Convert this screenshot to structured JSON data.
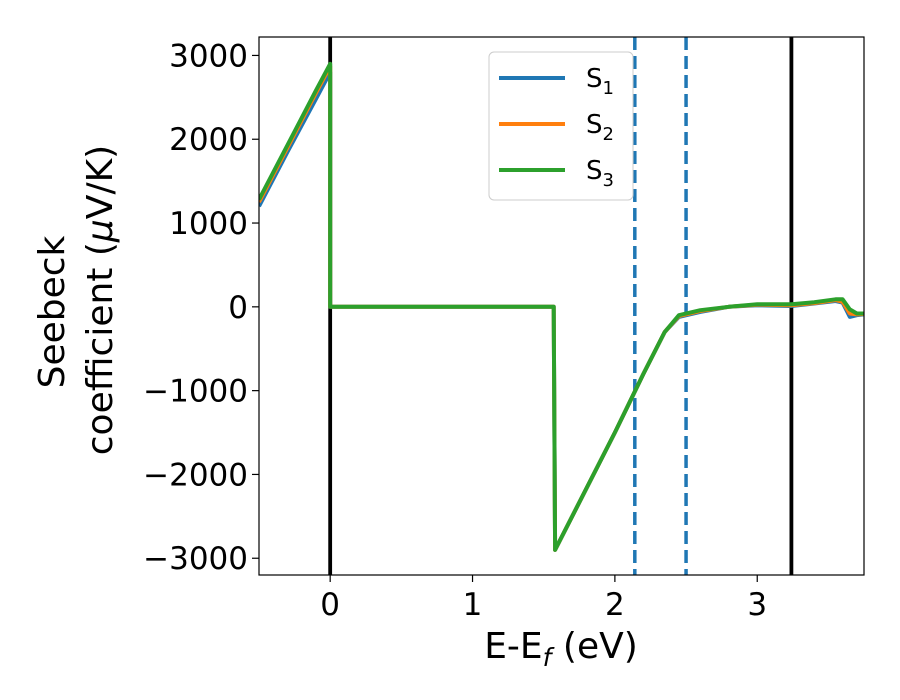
{
  "chart_data": {
    "type": "line",
    "xlabel": "E-E",
    "xlabel_sub": "f",
    "xlabel_unit": " (eV)",
    "ylabel_line1": "Seebeck",
    "ylabel_line2_pre": "coefficient  (",
    "ylabel_mu": "μ",
    "ylabel_line2_post": "V/K)",
    "xlim": [
      -0.5,
      3.75
    ],
    "ylim": [
      -3200,
      3220
    ],
    "xticks": [
      0,
      1,
      2,
      3
    ],
    "xtick_labels": [
      "0",
      "1",
      "2",
      "3"
    ],
    "yticks": [
      -3000,
      -2000,
      -1000,
      0,
      1000,
      2000,
      3000
    ],
    "ytick_labels": [
      "−3000",
      "−2000",
      "−1000",
      "0",
      "1000",
      "2000",
      "3000"
    ],
    "legend_position": "top-center",
    "vlines": [
      {
        "x": 0.0,
        "style": "solid",
        "color": "#000000"
      },
      {
        "x": 3.24,
        "style": "solid",
        "color": "#000000"
      },
      {
        "x": 2.14,
        "style": "dashed",
        "color": "#1f77b4"
      },
      {
        "x": 2.5,
        "style": "dashed",
        "color": "#1f77b4"
      }
    ],
    "series": [
      {
        "name": "S",
        "name_sub": "1",
        "color": "#1f77b4",
        "x": [
          -0.5,
          -0.3,
          -0.1,
          0.0,
          0.0,
          1.57,
          1.58,
          2.0,
          2.2,
          2.35,
          2.45,
          2.6,
          2.8,
          3.0,
          3.24,
          3.4,
          3.55,
          3.6,
          3.65,
          3.7,
          3.75
        ],
        "y": [
          1200,
          1850,
          2480,
          2800,
          0,
          0,
          -2900,
          -1500,
          -800,
          -300,
          -120,
          -60,
          0,
          20,
          10,
          40,
          70,
          50,
          -120,
          -100,
          -90
        ]
      },
      {
        "name": "S",
        "name_sub": "2",
        "color": "#ff7f0e",
        "x": [
          -0.5,
          -0.3,
          -0.1,
          0.0,
          0.0,
          1.57,
          1.58,
          2.0,
          2.2,
          2.35,
          2.45,
          2.6,
          2.8,
          3.0,
          3.24,
          3.4,
          3.55,
          3.6,
          3.65,
          3.7,
          3.75
        ],
        "y": [
          1250,
          1900,
          2550,
          2870,
          0,
          0,
          -2900,
          -1500,
          -800,
          -300,
          -110,
          -50,
          0,
          25,
          20,
          45,
          80,
          60,
          -80,
          -90,
          -85
        ]
      },
      {
        "name": "S",
        "name_sub": "3",
        "color": "#2ca02c",
        "x": [
          -0.5,
          -0.3,
          -0.1,
          0.0,
          0.0,
          1.57,
          1.58,
          2.0,
          2.2,
          2.35,
          2.45,
          2.6,
          2.8,
          3.0,
          3.24,
          3.4,
          3.55,
          3.6,
          3.65,
          3.7,
          3.75
        ],
        "y": [
          1280,
          1930,
          2580,
          2900,
          0,
          0,
          -2900,
          -1500,
          -800,
          -300,
          -100,
          -40,
          0,
          30,
          30,
          55,
          90,
          90,
          -30,
          -80,
          -80
        ]
      }
    ]
  }
}
